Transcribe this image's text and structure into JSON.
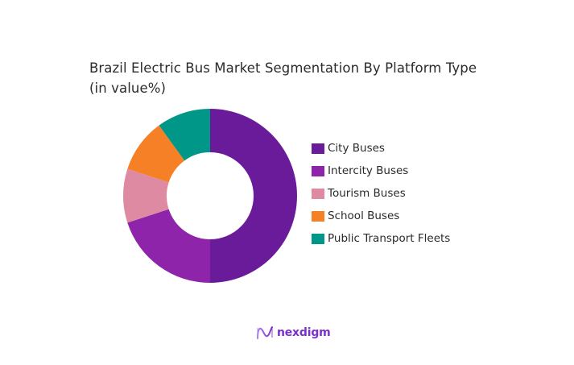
{
  "title": {
    "line1": "Brazil Electric Bus Market Segmentation By Platform Type",
    "line2": "(in value%)"
  },
  "legend": {
    "items": [
      {
        "label": "City Buses",
        "color": "#6a1b9a"
      },
      {
        "label": "Intercity Buses",
        "color": "#8e24aa"
      },
      {
        "label": "Tourism Buses",
        "color": "#de8aa3"
      },
      {
        "label": "School Buses",
        "color": "#f58025"
      },
      {
        "label": "Public Transport Fleets",
        "color": "#009688"
      }
    ]
  },
  "logo": {
    "text": "nexdigm",
    "icon": "nexdigm-wave-icon",
    "color": "#7b2fd0"
  },
  "chart_data": {
    "type": "pie",
    "subtype": "donut",
    "title": "Brazil Electric Bus Market Segmentation By Platform Type (in value%)",
    "categories": [
      "City Buses",
      "Intercity Buses",
      "Tourism Buses",
      "School Buses",
      "Public Transport Fleets"
    ],
    "values": [
      50,
      20,
      10,
      10,
      10
    ],
    "colors": [
      "#6a1b9a",
      "#8e24aa",
      "#de8aa3",
      "#f58025",
      "#009688"
    ],
    "start_angle": "top (12 o'clock), clockwise",
    "legend_position": "right",
    "data_labels": false
  }
}
